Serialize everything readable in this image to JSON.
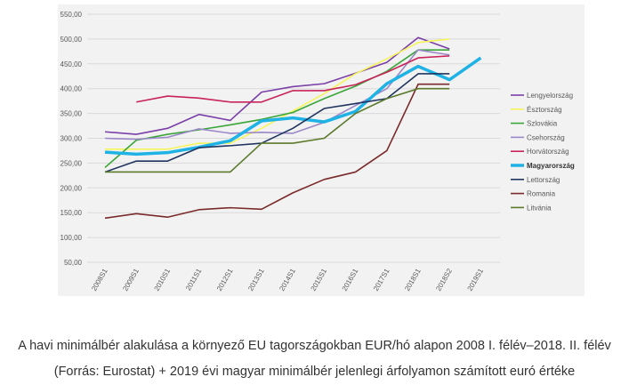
{
  "chart_data": {
    "type": "line",
    "caption": "A havi minimálbér alakulása a környező EU tagországokban EUR/hó alapon 2008 I. félév–2018. II. félév (Forrás: Eurostat) + 2019 évi magyar minimálbér jelenlegi árfolyamon számított euró értéke",
    "categories": [
      "2008S1",
      "2009S1",
      "2010S1",
      "2011S1",
      "2012S1",
      "2013S1",
      "2014S1",
      "2015S1",
      "2016S1",
      "2017S1",
      "2018S1",
      "2018S2",
      "2019S1"
    ],
    "ylim": [
      50,
      550
    ],
    "yticks": [
      {
        "value": 50,
        "label": "50,00"
      },
      {
        "value": 100,
        "label": "100,00"
      },
      {
        "value": 150,
        "label": "150,00"
      },
      {
        "value": 200,
        "label": "200,00"
      },
      {
        "value": 250,
        "label": "250,00"
      },
      {
        "value": 300,
        "label": "300,00"
      },
      {
        "value": 350,
        "label": "350,00"
      },
      {
        "value": 400,
        "label": "400,00"
      },
      {
        "value": 450,
        "label": "450,00"
      },
      {
        "value": 500,
        "label": "500,00"
      },
      {
        "value": 550,
        "label": "550,00"
      }
    ],
    "grid": true,
    "legend": "right",
    "series": [
      {
        "name": "Lengyelország",
        "color": "#7b3fa8",
        "values": [
          313,
          308,
          320,
          348,
          336,
          393,
          404,
          410,
          431,
          453,
          503,
          480,
          null
        ]
      },
      {
        "name": "Észtország",
        "color": "#f5f55a",
        "values": [
          278,
          278,
          278,
          290,
          290,
          320,
          355,
          390,
          430,
          460,
          493,
          500,
          null
        ]
      },
      {
        "name": "Szlovákia",
        "color": "#3aa63a",
        "values": [
          241,
          296,
          308,
          317,
          327,
          338,
          352,
          380,
          405,
          435,
          478,
          478,
          null
        ]
      },
      {
        "name": "Csehország",
        "color": "#9a88c8",
        "values": [
          300,
          298,
          302,
          319,
          310,
          312,
          310,
          332,
          366,
          400,
          478,
          468,
          null
        ]
      },
      {
        "name": "Horvátország",
        "color": "#c8235a",
        "values": [
          null,
          373,
          385,
          381,
          373,
          373,
          396,
          396,
          408,
          433,
          462,
          466,
          null
        ]
      },
      {
        "name": "Magyarország",
        "color": "#1fb2e5",
        "values": [
          272,
          268,
          271,
          282,
          295,
          335,
          341,
          333,
          354,
          410,
          445,
          418,
          462
        ]
      },
      {
        "name": "Lettország",
        "color": "#1f3560",
        "values": [
          232,
          254,
          254,
          281,
          285,
          290,
          320,
          360,
          370,
          380,
          430,
          430,
          null
        ]
      },
      {
        "name": "Romania",
        "color": "#7a2a2a",
        "values": [
          139,
          148,
          141,
          156,
          160,
          157,
          190,
          217,
          232,
          275,
          409,
          409,
          null
        ]
      },
      {
        "name": "Litvánia",
        "color": "#5b7a2c",
        "values": [
          232,
          232,
          232,
          232,
          232,
          290,
          290,
          300,
          350,
          380,
          400,
          400,
          null
        ]
      }
    ]
  }
}
